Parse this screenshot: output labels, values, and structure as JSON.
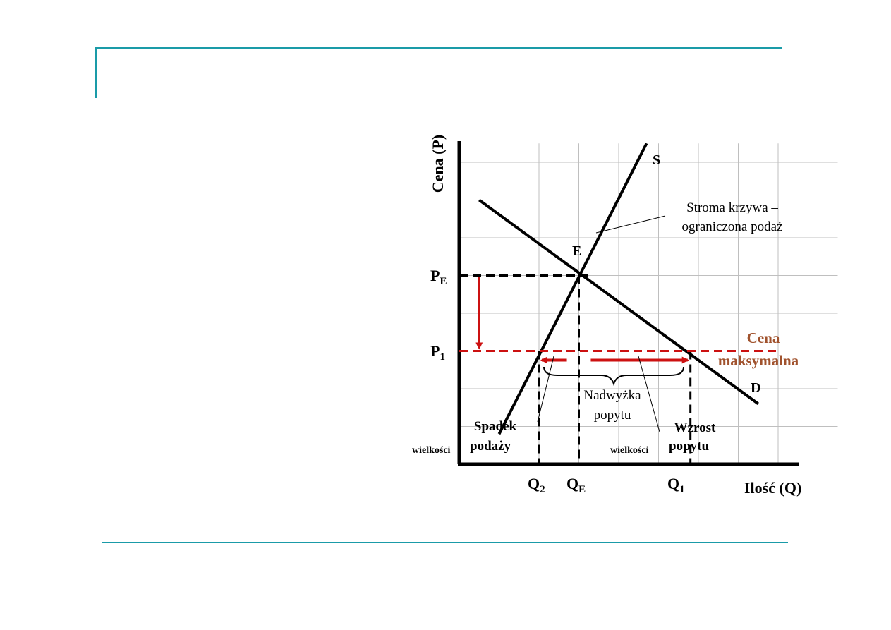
{
  "chart_data": {
    "type": "line",
    "ylabel": "Cena (P)",
    "xlabel": "Ilość (Q)",
    "xlim": [
      0,
      9
    ],
    "ylim": [
      0,
      8.5
    ],
    "grid": true,
    "series": [
      {
        "name": "S",
        "points": [
          [
            1.0,
            0.8
          ],
          [
            4.7,
            8.5
          ]
        ]
      },
      {
        "name": "D",
        "points": [
          [
            0.5,
            7.0
          ],
          [
            7.5,
            1.6
          ]
        ]
      }
    ],
    "equilibrium": {
      "label": "E",
      "q": 3.0,
      "p": 5.0
    },
    "price_ceiling": {
      "label_line1": "Cena",
      "label_line2": "maksymalna",
      "p": 3.0
    },
    "tick_labels": {
      "PE": "P",
      "PE_sub": "E",
      "P1": "P",
      "P1_sub": "1",
      "Q2": "Q",
      "Q2_sub": "2",
      "QE": "Q",
      "QE_sub": "E",
      "Q1": "Q",
      "Q1_sub": "1"
    },
    "quantities": {
      "Q2": 2.0,
      "QE": 3.0,
      "Q1": 5.8
    },
    "annotations": {
      "steep_line1": "Stroma krzywa –",
      "steep_line2": "ograniczona podaż",
      "surplus_line1": "Nadwyżka",
      "surplus_line2": "popytu",
      "supply_drop_line1": "Spadek",
      "supply_drop_line2a": "wielkości",
      "supply_drop_line2b": "podaży",
      "demand_rise_line1": "Wzrost",
      "demand_rise_line2a": "wielkości",
      "demand_rise_line2b": "popytu"
    },
    "colors": {
      "curve": "#000000",
      "ceiling": "#cc1111",
      "ceiling_label": "#a0522d",
      "grid": "#bfbfbf",
      "frame": "#1a9ba8"
    }
  }
}
